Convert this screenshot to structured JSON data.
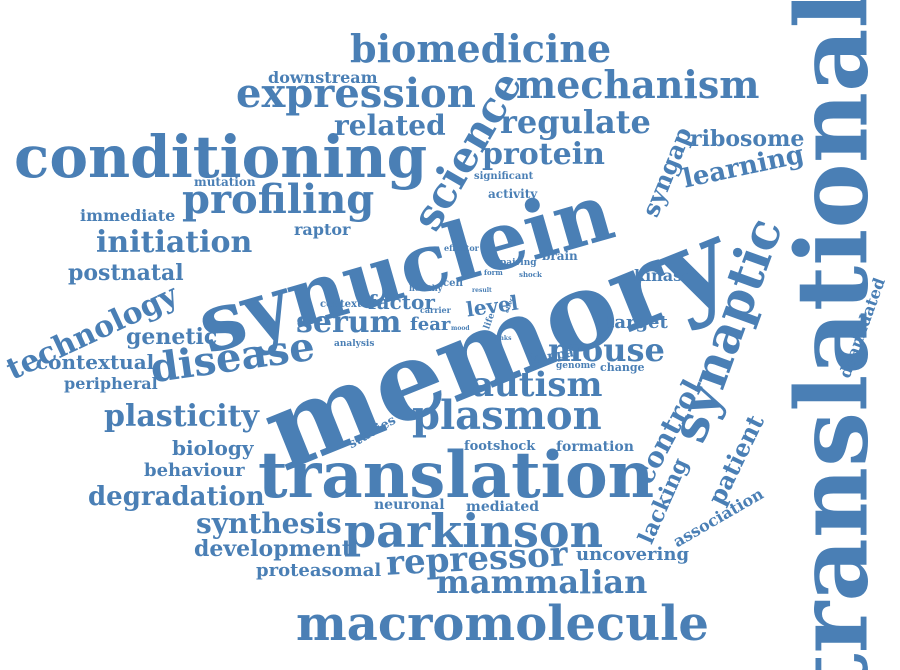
{
  "cloud": {
    "color": "#4a7fb5",
    "words": [
      "translational",
      "memory",
      "synuclein",
      "translation",
      "conditioning",
      "synaptic",
      "macromolecule",
      "parkinson",
      "plasmon",
      "expression",
      "biomedicine",
      "mechanism",
      "profiling",
      "science",
      "disease",
      "repressor",
      "mammalian",
      "technology",
      "initiation",
      "autism",
      "serum",
      "mouse",
      "plasticity",
      "control",
      "regulate",
      "protein",
      "related",
      "synthesis",
      "degradation",
      "development",
      "learning",
      "ribosome",
      "syngap",
      "patient",
      "lacking",
      "postnatal",
      "genetic",
      "contextual",
      "peripheral",
      "biology",
      "behaviour",
      "proteasomal",
      "uncovering",
      "association",
      "deamidated",
      "downstream",
      "immediate",
      "mutation",
      "raptor",
      "factor",
      "fear",
      "level",
      "target",
      "kinase",
      "formation",
      "neuronal",
      "mediated",
      "footshock",
      "studies",
      "kappa",
      "genome",
      "change",
      "context",
      "carrier",
      "cell",
      "healthy",
      "analysis",
      "brain",
      "activity",
      "significant",
      "effector",
      "pairing",
      "form",
      "shock",
      "life",
      "result",
      "effect",
      "mood",
      "links"
    ]
  }
}
